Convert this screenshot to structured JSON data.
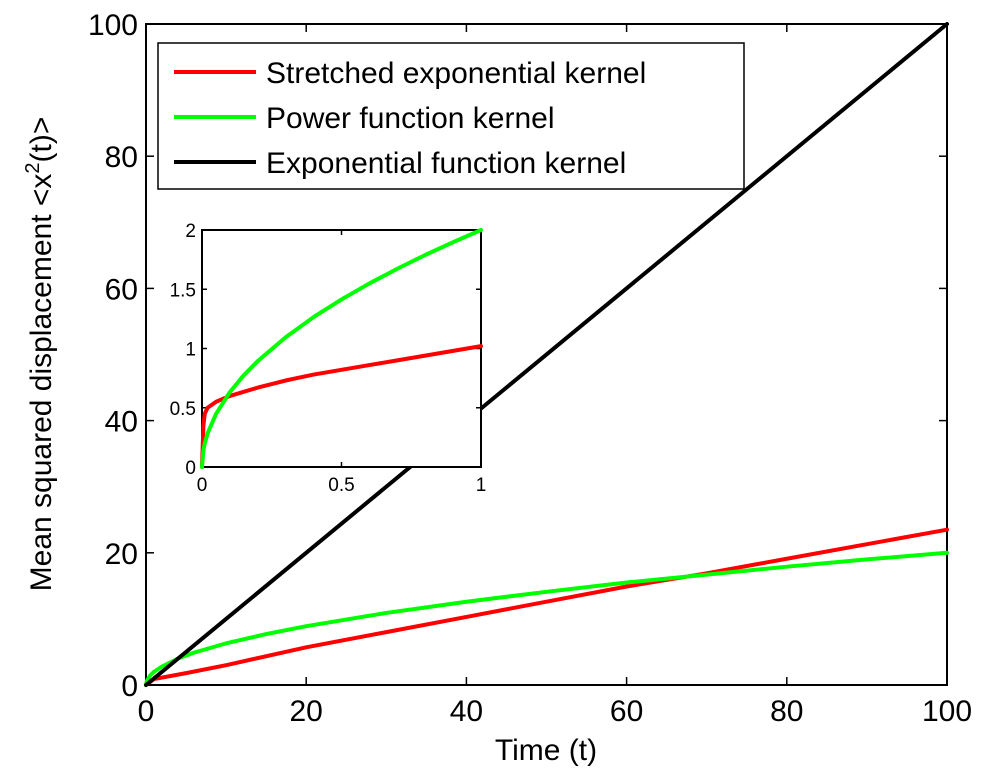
{
  "chart_data": [
    {
      "type": "line",
      "role": "main",
      "xlabel": "Time (t)",
      "ylabel": "Mean squared displacement <x",
      "ylabel_sup": "2",
      "ylabel_tail": "(t)>",
      "xlim": [
        0,
        100
      ],
      "ylim": [
        0,
        100
      ],
      "xticks": [
        "0",
        "20",
        "40",
        "60",
        "80",
        "100"
      ],
      "yticks": [
        "0",
        "20",
        "40",
        "60",
        "80",
        "100"
      ],
      "grid": false,
      "legend_position": "top-left",
      "series": [
        {
          "name": "Stretched exponential kernel",
          "color": "#ff0000",
          "x": [
            0,
            1,
            5,
            10,
            20,
            30,
            40,
            50,
            60,
            70,
            80,
            90,
            100
          ],
          "y": [
            0,
            0.9,
            1.8,
            3.0,
            5.7,
            8.0,
            10.3,
            12.6,
            14.9,
            16.9,
            19.1,
            21.3,
            23.5
          ]
        },
        {
          "name": "Power function kernel",
          "color": "#00ff00",
          "x": [
            0,
            0.1,
            0.5,
            1,
            2,
            4,
            6,
            10,
            15,
            20,
            30,
            40,
            50,
            60,
            70,
            80,
            90,
            100
          ],
          "y": [
            0,
            0.6,
            1.4,
            2.0,
            2.8,
            4.0,
            4.9,
            6.3,
            7.7,
            8.9,
            10.9,
            12.6,
            14.1,
            15.5,
            16.7,
            17.9,
            19.0,
            20.0
          ]
        },
        {
          "name": "Exponential function kernel",
          "color": "#000000",
          "x": [
            0,
            100
          ],
          "y": [
            0,
            100
          ]
        }
      ]
    },
    {
      "type": "line",
      "role": "inset",
      "xlim": [
        0,
        1
      ],
      "ylim": [
        0,
        2
      ],
      "xticks": [
        "0",
        "0.5",
        "1"
      ],
      "yticks": [
        "0",
        "0.5",
        "1",
        "1.5",
        "2"
      ],
      "series": [
        {
          "color": "#ff0000",
          "x": [
            0,
            0.005,
            0.01,
            0.02,
            0.05,
            0.1,
            0.2,
            0.3,
            0.4,
            0.5,
            0.6,
            0.7,
            0.8,
            0.9,
            1.0
          ],
          "y": [
            0,
            0.35,
            0.45,
            0.5,
            0.55,
            0.6,
            0.67,
            0.73,
            0.78,
            0.82,
            0.86,
            0.9,
            0.94,
            0.98,
            1.02
          ]
        },
        {
          "color": "#00ff00",
          "x": [
            0,
            0.005,
            0.01,
            0.02,
            0.05,
            0.1,
            0.15,
            0.2,
            0.3,
            0.4,
            0.5,
            0.6,
            0.7,
            0.8,
            0.9,
            1.0
          ],
          "y": [
            0,
            0.141,
            0.2,
            0.283,
            0.447,
            0.632,
            0.775,
            0.894,
            1.095,
            1.265,
            1.414,
            1.549,
            1.673,
            1.789,
            1.897,
            2.0
          ]
        }
      ]
    }
  ]
}
